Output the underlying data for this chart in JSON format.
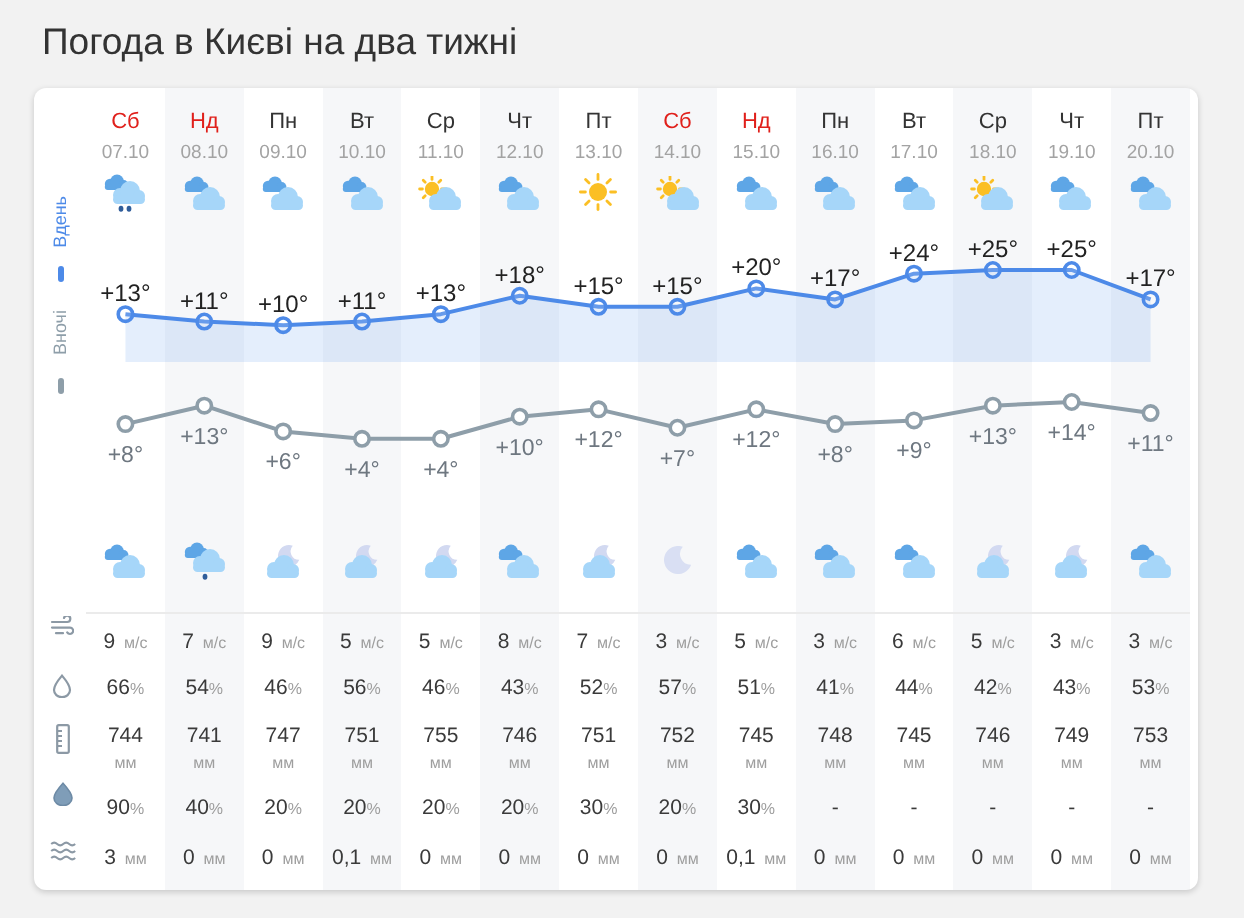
{
  "chart_data": [
    {
      "type": "line",
      "title": "Погода в Києві на два тижні",
      "categories": [
        "Сб 07.10",
        "Нд 08.10",
        "Пн 09.10",
        "Вт 10.10",
        "Ср 11.10",
        "Чт 12.10",
        "Пт 13.10",
        "Сб 14.10",
        "Нд 15.10",
        "Пн 16.10",
        "Вт 17.10",
        "Ср 18.10",
        "Чт 19.10",
        "Пт 20.10"
      ],
      "series": [
        {
          "name": "Вдень",
          "type": "area",
          "color": "#4d8ae8",
          "values": [
            13,
            11,
            10,
            11,
            13,
            18,
            15,
            15,
            20,
            17,
            24,
            25,
            25,
            17
          ],
          "value_labels": [
            "+13°",
            "+11°",
            "+10°",
            "+11°",
            "+13°",
            "+18°",
            "+15°",
            "+15°",
            "+20°",
            "+17°",
            "+24°",
            "+25°",
            "+25°",
            "+17°"
          ]
        }
      ],
      "tick_labels": "x",
      "legend": "left",
      "marker": "circle",
      "line_style": "solid"
    },
    {
      "type": "line",
      "categories": [
        null,
        null,
        null,
        null,
        null,
        null,
        null,
        null,
        null,
        null,
        null,
        null,
        null,
        null
      ],
      "series": [
        {
          "name": "Вночі",
          "color": "#8e9ea9",
          "values": [
            8,
            13,
            6,
            4,
            4,
            10,
            12,
            7,
            12,
            8,
            9,
            13,
            14,
            11
          ],
          "value_labels": [
            "+8°",
            "+13°",
            "+6°",
            "+4°",
            "+4°",
            "+10°",
            "+12°",
            "+7°",
            "+12°",
            "+8°",
            "+9°",
            "+13°",
            "+14°",
            "+11°"
          ]
        }
      ],
      "tick_labels": false,
      "legend": "left",
      "marker": "circle",
      "line_style": "solid"
    },
    {
      "type": "other",
      "annotations": [
        "9 м/с",
        "7 м/с",
        "9 м/с",
        "5 м/с",
        "5 м/с",
        "8 м/с",
        "7 м/с",
        "3 м/с",
        "5 м/с",
        "3 м/с",
        "6 м/с",
        "5 м/с",
        "3 м/с",
        "3 м/с",
        "66%",
        "54%",
        "46%",
        "56%",
        "46%",
        "43%",
        "52%",
        "57%",
        "51%",
        "41%",
        "44%",
        "42%",
        "43%",
        "53%",
        "744 мм",
        "741 мм",
        "747 мм",
        "751 мм",
        "755 мм",
        "746 мм",
        "751 мм",
        "752 мм",
        "745 мм",
        "748 мм",
        "745 мм",
        "746 мм",
        "749 мм",
        "753 мм",
        "90%",
        "40%",
        "20%",
        "20%",
        "20%",
        "20%",
        "30%",
        "20%",
        "30%",
        "-",
        "-",
        "-",
        "-",
        "-",
        "3 мм",
        "0 мм",
        "0 мм",
        "0,1 мм",
        "0 мм",
        "0 мм",
        "0 мм",
        "0 мм",
        "0,1 мм",
        "0 мм",
        "0 мм",
        "0 мм",
        "0 мм",
        "0 мм"
      ]
    }
  ]
}
